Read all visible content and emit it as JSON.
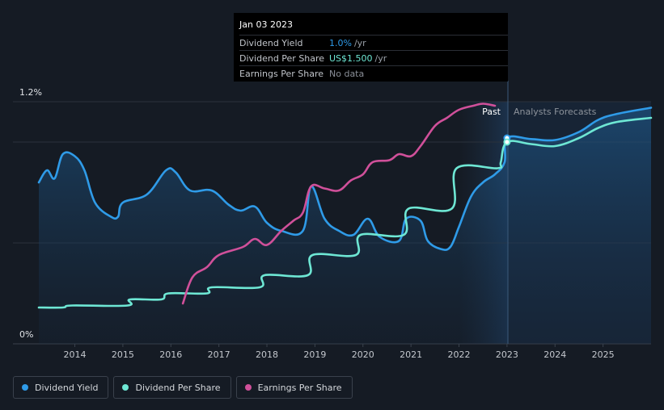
{
  "tooltip": {
    "date": "Jan 03 2023",
    "rows": [
      {
        "label": "Dividend Yield",
        "value": "1.0%",
        "unit": "/yr",
        "color": "#2f9be8"
      },
      {
        "label": "Dividend Per Share",
        "value": "US$1.500",
        "unit": "/yr",
        "color": "#6ee7d4"
      },
      {
        "label": "Earnings Per Share",
        "value": "No data",
        "unit": "",
        "color": "#8a8f98"
      }
    ]
  },
  "labels": {
    "past": "Past",
    "forecast": "Analysts Forecasts"
  },
  "legend": [
    {
      "label": "Dividend Yield",
      "color": "#2f9be8"
    },
    {
      "label": "Dividend Per Share",
      "color": "#6ee7d4"
    },
    {
      "label": "Earnings Per Share",
      "color": "#d0509a"
    }
  ],
  "chart_data": {
    "type": "line",
    "y_ticks": [
      "1.2%",
      "0%"
    ],
    "ylim": [
      0,
      1.2
    ],
    "x_ticks": [
      2014,
      2015,
      2016,
      2017,
      2018,
      2019,
      2020,
      2021,
      2022,
      2023,
      2024,
      2025
    ],
    "xlim": [
      2013.25,
      2026.0
    ],
    "divider_x": 2023.0,
    "series": [
      {
        "name": "Dividend Yield",
        "color": "#2f9be8",
        "fill": true,
        "points": [
          [
            2013.25,
            0.8
          ],
          [
            2013.42,
            0.86
          ],
          [
            2013.58,
            0.82
          ],
          [
            2013.75,
            0.94
          ],
          [
            2014.0,
            0.93
          ],
          [
            2014.2,
            0.86
          ],
          [
            2014.42,
            0.7
          ],
          [
            2014.75,
            0.63
          ],
          [
            2014.9,
            0.63
          ],
          [
            2015.0,
            0.7
          ],
          [
            2015.5,
            0.74
          ],
          [
            2015.9,
            0.86
          ],
          [
            2016.1,
            0.85
          ],
          [
            2016.4,
            0.76
          ],
          [
            2016.85,
            0.76
          ],
          [
            2017.2,
            0.69
          ],
          [
            2017.45,
            0.66
          ],
          [
            2017.75,
            0.68
          ],
          [
            2018.0,
            0.6
          ],
          [
            2018.3,
            0.56
          ],
          [
            2018.75,
            0.56
          ],
          [
            2018.92,
            0.78
          ],
          [
            2019.2,
            0.62
          ],
          [
            2019.5,
            0.56
          ],
          [
            2019.8,
            0.54
          ],
          [
            2020.1,
            0.62
          ],
          [
            2020.35,
            0.53
          ],
          [
            2020.75,
            0.51
          ],
          [
            2020.9,
            0.62
          ],
          [
            2021.2,
            0.61
          ],
          [
            2021.35,
            0.51
          ],
          [
            2021.62,
            0.47
          ],
          [
            2021.82,
            0.48
          ],
          [
            2022.0,
            0.58
          ],
          [
            2022.25,
            0.73
          ],
          [
            2022.5,
            0.8
          ],
          [
            2022.75,
            0.84
          ],
          [
            2022.95,
            0.9
          ],
          [
            2023.0,
            1.02
          ],
          [
            2023.5,
            1.015
          ],
          [
            2024.0,
            1.01
          ],
          [
            2024.5,
            1.05
          ],
          [
            2024.9,
            1.11
          ],
          [
            2025.3,
            1.14
          ],
          [
            2026.0,
            1.17
          ]
        ]
      },
      {
        "name": "Dividend Per Share",
        "color": "#6ee7d4",
        "fill": false,
        "points": [
          [
            2013.25,
            0.18
          ],
          [
            2013.75,
            0.18
          ],
          [
            2013.95,
            0.19
          ],
          [
            2015.1,
            0.19
          ],
          [
            2015.15,
            0.22
          ],
          [
            2015.8,
            0.22
          ],
          [
            2015.95,
            0.25
          ],
          [
            2016.75,
            0.25
          ],
          [
            2016.85,
            0.28
          ],
          [
            2017.85,
            0.28
          ],
          [
            2017.95,
            0.34
          ],
          [
            2018.85,
            0.34
          ],
          [
            2018.95,
            0.44
          ],
          [
            2019.85,
            0.44
          ],
          [
            2019.95,
            0.54
          ],
          [
            2020.85,
            0.54
          ],
          [
            2020.95,
            0.67
          ],
          [
            2021.85,
            0.67
          ],
          [
            2021.95,
            0.87
          ],
          [
            2022.8,
            0.87
          ],
          [
            2022.87,
            0.9
          ],
          [
            2023.0,
            1.0
          ],
          [
            2023.5,
            0.99
          ],
          [
            2024.0,
            0.98
          ],
          [
            2024.5,
            1.02
          ],
          [
            2024.9,
            1.07
          ],
          [
            2025.3,
            1.1
          ],
          [
            2026.0,
            1.12
          ]
        ]
      },
      {
        "name": "Earnings Per Share",
        "color": "#d0509a",
        "fill": false,
        "points": [
          [
            2016.25,
            0.2
          ],
          [
            2016.45,
            0.33
          ],
          [
            2016.75,
            0.38
          ],
          [
            2017.0,
            0.44
          ],
          [
            2017.5,
            0.48
          ],
          [
            2017.75,
            0.52
          ],
          [
            2018.0,
            0.49
          ],
          [
            2018.3,
            0.56
          ],
          [
            2018.55,
            0.61
          ],
          [
            2018.75,
            0.65
          ],
          [
            2018.92,
            0.78
          ],
          [
            2019.2,
            0.77
          ],
          [
            2019.5,
            0.76
          ],
          [
            2019.75,
            0.81
          ],
          [
            2020.0,
            0.84
          ],
          [
            2020.2,
            0.9
          ],
          [
            2020.55,
            0.91
          ],
          [
            2020.75,
            0.94
          ],
          [
            2021.0,
            0.93
          ],
          [
            2021.2,
            0.98
          ],
          [
            2021.5,
            1.08
          ],
          [
            2021.75,
            1.12
          ],
          [
            2022.0,
            1.16
          ],
          [
            2022.3,
            1.18
          ],
          [
            2022.5,
            1.19
          ],
          [
            2022.75,
            1.18
          ]
        ]
      }
    ]
  }
}
